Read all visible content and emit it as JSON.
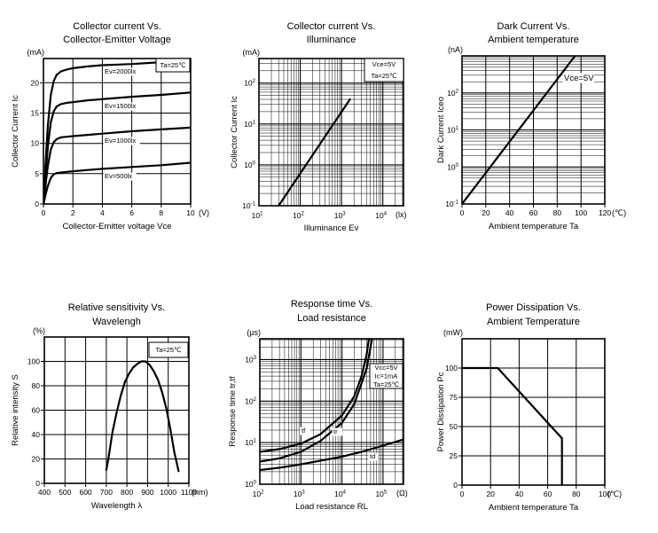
{
  "colors": {
    "ink": "#000000",
    "background": "#ffffff"
  },
  "chart_data": [
    {
      "type": "line",
      "title_line1": "Collector current Vs.",
      "title_line2": "Collector-Emitter Voltage",
      "y_unit": "(mA)",
      "x_unit": "(V)",
      "y_label": "Collector Current Ic",
      "x_label": "Collector-Emitter voltage  Vce",
      "x_axis": {
        "type": "linear",
        "min": 0,
        "max": 10,
        "ticks": [
          0,
          2,
          4,
          6,
          8,
          10
        ]
      },
      "y_axis": {
        "type": "linear",
        "min": 0,
        "max": 24,
        "ticks": [
          0,
          5,
          10,
          15,
          20
        ]
      },
      "grid": "on",
      "series": [
        {
          "name": "Ev=2000lx",
          "points": [
            [
              0,
              0
            ],
            [
              0.15,
              7
            ],
            [
              0.3,
              13
            ],
            [
              0.5,
              18
            ],
            [
              0.7,
              20.3
            ],
            [
              0.9,
              21.3
            ],
            [
              1.2,
              21.9
            ],
            [
              1.6,
              22.2
            ],
            [
              2,
              22.4
            ],
            [
              3,
              22.7
            ],
            [
              4,
              22.9
            ],
            [
              6,
              23.1
            ],
            [
              8,
              23.4
            ],
            [
              10,
              23.6
            ]
          ]
        },
        {
          "name": "Ev=1500lx",
          "points": [
            [
              0,
              0
            ],
            [
              0.15,
              5
            ],
            [
              0.3,
              9.5
            ],
            [
              0.5,
              13.5
            ],
            [
              0.7,
              15.3
            ],
            [
              0.9,
              16.1
            ],
            [
              1.2,
              16.5
            ],
            [
              1.6,
              16.7
            ],
            [
              2,
              16.8
            ],
            [
              3,
              17.1
            ],
            [
              4,
              17.3
            ],
            [
              6,
              17.7
            ],
            [
              8,
              18
            ],
            [
              10,
              18.4
            ]
          ]
        },
        {
          "name": "Ev=1000lx",
          "points": [
            [
              0,
              0
            ],
            [
              0.15,
              3.3
            ],
            [
              0.3,
              6.3
            ],
            [
              0.5,
              9
            ],
            [
              0.7,
              10.2
            ],
            [
              0.9,
              10.7
            ],
            [
              1.2,
              11
            ],
            [
              1.6,
              11.1
            ],
            [
              2,
              11.2
            ],
            [
              3,
              11.4
            ],
            [
              4,
              11.6
            ],
            [
              6,
              12
            ],
            [
              8,
              12.3
            ],
            [
              10,
              12.6
            ]
          ]
        },
        {
          "name": "Ev=500lx",
          "points": [
            [
              0,
              0
            ],
            [
              0.15,
              1.6
            ],
            [
              0.3,
              3
            ],
            [
              0.5,
              4.3
            ],
            [
              0.7,
              4.9
            ],
            [
              0.9,
              5.1
            ],
            [
              1.2,
              5.2
            ],
            [
              1.6,
              5.3
            ],
            [
              2,
              5.4
            ],
            [
              3,
              5.6
            ],
            [
              4,
              5.8
            ],
            [
              6,
              6.1
            ],
            [
              8,
              6.4
            ],
            [
              10,
              6.8
            ]
          ]
        }
      ],
      "annotations": [
        {
          "lines": [
            "Ta=25℃"
          ],
          "boxed": true
        }
      ]
    },
    {
      "type": "line",
      "title_line1": "Collector current Vs.",
      "title_line2": "Illuminance",
      "y_unit": "(mA)",
      "x_unit": "(lx)",
      "y_label": "Collector  Current Ic",
      "x_label": "Illuminance  Ev",
      "x_axis": {
        "type": "log",
        "min_exp": 1,
        "max_exp": 4.5,
        "tick_exps": [
          1,
          2,
          3,
          4
        ]
      },
      "y_axis": {
        "type": "log",
        "min_exp": -1,
        "max_exp": 2.6,
        "tick_exps": [
          -1,
          0,
          1,
          2
        ]
      },
      "grid": "log",
      "series": [
        {
          "name": "",
          "points": [
            [
              30,
              0.1
            ],
            [
              1600,
              40
            ]
          ]
        }
      ],
      "annotations": [
        {
          "lines": [
            "Vce=5V",
            "Ta=25℃"
          ],
          "boxed": true
        }
      ]
    },
    {
      "type": "line",
      "title_line1": "Dark Current Vs.",
      "title_line2": "Ambient temperature",
      "y_unit": "(nA)",
      "x_unit": "(℃)",
      "y_label": "Dark Current Iceo",
      "x_label": "Ambient temperature  Ta",
      "x_axis": {
        "type": "linear",
        "min": 0,
        "max": 120,
        "ticks": [
          0,
          20,
          40,
          60,
          80,
          100,
          120
        ]
      },
      "y_axis": {
        "type": "log",
        "min_exp": -1,
        "max_exp": 3,
        "tick_exps": [
          -1,
          0,
          1,
          2
        ]
      },
      "grid": "semilog",
      "series": [
        {
          "name": "",
          "points": [
            [
              0,
              0.1
            ],
            [
              95,
              1000
            ]
          ]
        }
      ],
      "annotations": [
        {
          "lines": [
            "Vce=5V"
          ],
          "boxed": false
        }
      ]
    },
    {
      "type": "line",
      "title_line1": "Relative sensitivity Vs.",
      "title_line2": "Wavelengh",
      "y_unit": "(%)",
      "x_unit": "(nm)",
      "y_label": "Relative intensity  S",
      "x_label": "Wavelength  λ",
      "x_axis": {
        "type": "linear",
        "min": 400,
        "max": 1100,
        "ticks": [
          400,
          500,
          600,
          700,
          800,
          900,
          1000,
          1100
        ]
      },
      "y_axis": {
        "type": "linear",
        "min": 0,
        "max": 120,
        "ticks": [
          0,
          20,
          40,
          60,
          80,
          100
        ]
      },
      "grid": "on",
      "series": [
        {
          "name": "",
          "points": [
            [
              700,
              11
            ],
            [
              710,
              20
            ],
            [
              730,
              42
            ],
            [
              750,
              58
            ],
            [
              770,
              72
            ],
            [
              790,
              83
            ],
            [
              810,
              90
            ],
            [
              830,
              95
            ],
            [
              850,
              98
            ],
            [
              870,
              100
            ],
            [
              890,
              100
            ],
            [
              910,
              97
            ],
            [
              930,
              92
            ],
            [
              950,
              85
            ],
            [
              970,
              75
            ],
            [
              990,
              62
            ],
            [
              1010,
              45
            ],
            [
              1030,
              25
            ],
            [
              1050,
              10
            ]
          ]
        }
      ],
      "annotations": [
        {
          "lines": [
            "Ta=25℃"
          ],
          "boxed": true
        }
      ]
    },
    {
      "type": "line",
      "title_line1": "Response time Vs.",
      "title_line2": "Load resistance",
      "y_unit": "(µs)",
      "x_unit": "(Ω)",
      "y_label": "Response time tr,tf",
      "x_label": "Load resistance  RL",
      "x_axis": {
        "type": "log",
        "min_exp": 2,
        "max_exp": 5.5,
        "tick_exps": [
          2,
          3,
          4,
          5
        ]
      },
      "y_axis": {
        "type": "log",
        "min_exp": 0,
        "max_exp": 3.5,
        "tick_exps": [
          0,
          1,
          2,
          3
        ]
      },
      "grid": "log",
      "series": [
        {
          "name": "tf",
          "points": [
            [
              100,
              6
            ],
            [
              300,
              7
            ],
            [
              1000,
              9.5
            ],
            [
              3000,
              16
            ],
            [
              10000,
              45
            ],
            [
              20000,
              130
            ],
            [
              30000,
              400
            ],
            [
              40000,
              1300
            ],
            [
              46000,
              3400
            ]
          ]
        },
        {
          "name": "tr",
          "points": [
            [
              100,
              3.5
            ],
            [
              300,
              4.2
            ],
            [
              1000,
              6
            ],
            [
              3000,
              11
            ],
            [
              10000,
              30
            ],
            [
              20000,
              85
            ],
            [
              40000,
              600
            ],
            [
              55000,
              3400
            ]
          ]
        },
        {
          "name": "td",
          "points": [
            [
              100,
              2.2
            ],
            [
              300,
              2.5
            ],
            [
              1000,
              3
            ],
            [
              3000,
              3.7
            ],
            [
              10000,
              4.6
            ],
            [
              30000,
              6
            ],
            [
              100000,
              8.5
            ],
            [
              320000,
              12
            ]
          ]
        }
      ],
      "annotations": [
        {
          "lines": [
            "Vcc=5V",
            "Ic=1mA",
            "Ta=25℃"
          ],
          "boxed": true
        }
      ]
    },
    {
      "type": "line",
      "title_line1": "Power Dissipation Vs.",
      "title_line2": "Ambient Temperature",
      "y_unit": "(mW)",
      "x_unit": "(℃)",
      "y_label": "Power Dissipation Pc",
      "x_label": "Ambient temperature  Ta",
      "x_axis": {
        "type": "linear",
        "min": 0,
        "max": 100,
        "ticks": [
          0,
          20,
          40,
          60,
          80,
          100
        ]
      },
      "y_axis": {
        "type": "linear",
        "min": 0,
        "max": 125,
        "ticks": [
          0,
          25,
          50,
          75,
          100
        ]
      },
      "grid": "on",
      "series": [
        {
          "name": "",
          "points": [
            [
              0,
              100
            ],
            [
              25,
              100
            ],
            [
              70,
              40
            ],
            [
              70,
              0
            ]
          ]
        }
      ],
      "annotations": []
    }
  ]
}
